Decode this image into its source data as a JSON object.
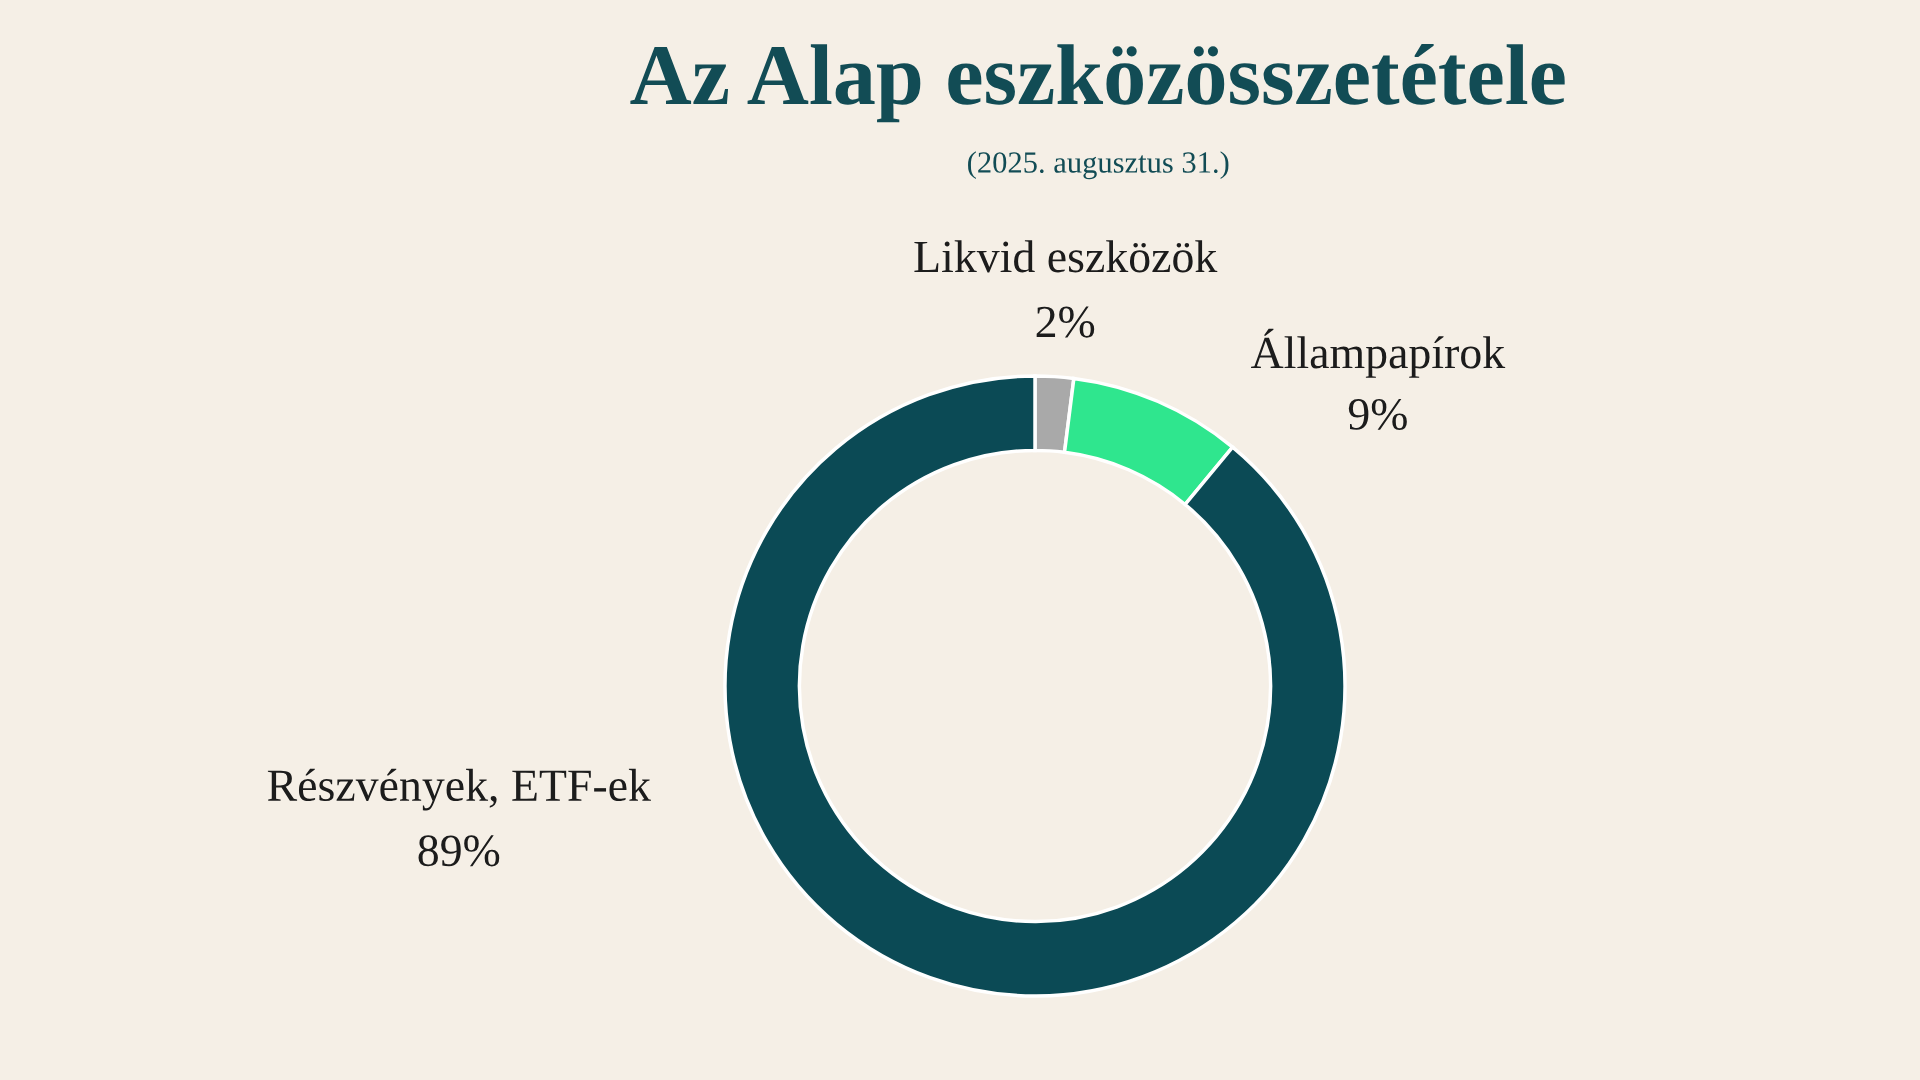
{
  "chart_data": {
    "type": "donut",
    "title": "Az Alap eszközösszetétele",
    "subtitle": "(2025. augusztus 31.)",
    "categories": [
      "Likvid eszközök",
      "Állampapírok",
      "Részvények, ETF-ek"
    ],
    "values": [
      2,
      9,
      89
    ],
    "colors": [
      "#a9a9a9",
      "#2fe68e",
      "#0b4a55"
    ],
    "value_labels": [
      "2%",
      "9%",
      "89%"
    ]
  }
}
